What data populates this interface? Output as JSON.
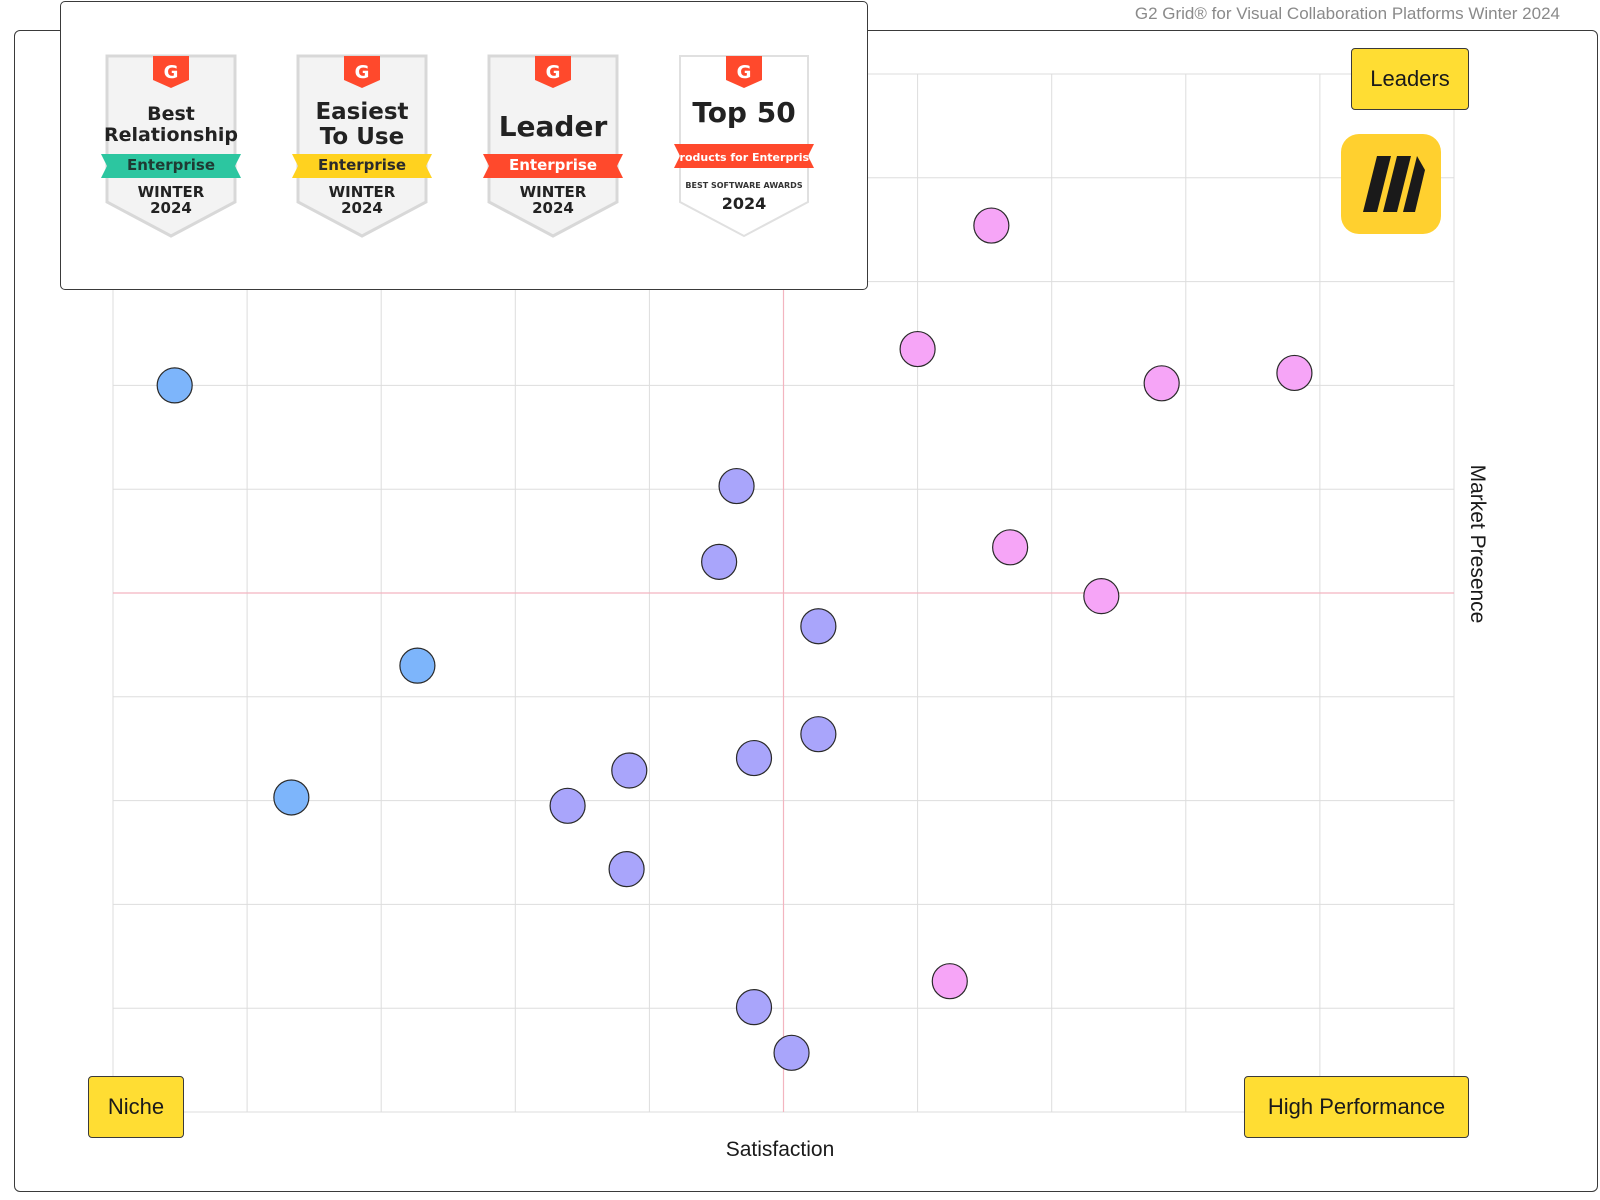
{
  "header": {
    "title": "G2 Grid® for Visual Collaboration Platforms Winter 2024"
  },
  "badges": [
    {
      "title_lines": [
        "Best",
        "Relationship"
      ],
      "ribbon": "Enterprise",
      "ribbon_color": "#2CC6A0",
      "ribbon_text_color": "#1f3a33",
      "season": [
        "WINTER",
        "2024"
      ]
    },
    {
      "title_lines": [
        "Easiest",
        "To Use"
      ],
      "ribbon": "Enterprise",
      "ribbon_color": "#FFD21F",
      "ribbon_text_color": "#2b2b2b",
      "season": [
        "WINTER",
        "2024"
      ]
    },
    {
      "title_lines": [
        "Leader"
      ],
      "ribbon": "Enterprise",
      "ribbon_color": "#FF492C",
      "ribbon_text_color": "#ffffff",
      "season": [
        "WINTER",
        "2024"
      ]
    },
    {
      "title_lines": [
        "Top 50"
      ],
      "ribbon": "Products for Enterprise",
      "ribbon_color": "#FF492C",
      "ribbon_text_color": "#ffffff",
      "awards_label": "BEST SOFTWARE AWARDS",
      "year": "2024"
    }
  ],
  "quadrants": {
    "leaders": "Leaders",
    "niche": "Niche",
    "high_performance": "High Performance"
  },
  "colors": {
    "accent": "#FFDD33",
    "leader_dot": "#F6A5F7",
    "contender_dot": "#A9A5FB",
    "niche_dot": "#7DB5FB",
    "midline": "#F3B5C0",
    "grid": "#DDDDDD",
    "g2_red": "#FF492C"
  },
  "chart_data": {
    "type": "scatter",
    "xlabel": "Satisfaction",
    "ylabel": "Market Presence",
    "xlim": [
      0,
      100
    ],
    "ylim": [
      0,
      100
    ],
    "grid": true,
    "series": [
      {
        "color": "#F6A5F7",
        "points": [
          [
            65.5,
            85.4
          ],
          [
            60.0,
            73.5
          ],
          [
            88.1,
            71.2
          ],
          [
            78.2,
            70.2
          ],
          [
            66.9,
            54.4
          ],
          [
            73.7,
            49.7
          ],
          [
            62.4,
            12.6
          ]
        ]
      },
      {
        "color": "#A9A5FB",
        "points": [
          [
            46.5,
            60.3
          ],
          [
            45.2,
            53.0
          ],
          [
            52.6,
            46.8
          ],
          [
            52.6,
            36.4
          ],
          [
            47.8,
            34.1
          ],
          [
            38.5,
            32.9
          ],
          [
            33.9,
            29.5
          ],
          [
            38.3,
            23.4
          ],
          [
            47.8,
            10.1
          ],
          [
            50.6,
            5.7
          ]
        ]
      },
      {
        "color": "#7DB5FB",
        "points": [
          [
            4.6,
            70.0
          ],
          [
            22.7,
            43.0
          ],
          [
            13.3,
            30.3
          ]
        ]
      }
    ]
  }
}
